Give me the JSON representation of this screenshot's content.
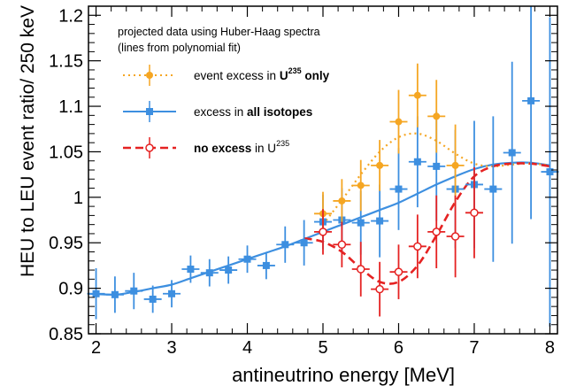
{
  "chart_data": {
    "type": "scatter",
    "xlabel": "antineutrino energy [MeV]",
    "ylabel": "HEU to LEU event ratio/ 250 keV",
    "xlim": [
      1.9,
      8.1
    ],
    "ylim": [
      0.85,
      1.21
    ],
    "xticks": [
      2,
      3,
      4,
      5,
      6,
      7,
      8
    ],
    "yticks": [
      0.85,
      0.9,
      0.95,
      1,
      1.05,
      1.1,
      1.15,
      1.2
    ],
    "xtick_labels": [
      "2",
      "3",
      "4",
      "5",
      "6",
      "7",
      "8"
    ],
    "ytick_labels": [
      "0.85",
      "0.9",
      "0.95",
      "1",
      "1.05",
      "1.1",
      "1.15",
      "1.2"
    ],
    "legend": {
      "position": "top-left",
      "header_line1": "projected data using Huber-Haag spectra",
      "header_line2": "(lines from polynomial fit)",
      "items": [
        {
          "pre": "event excess in ",
          "bold": "U",
          "bold_sup": "235",
          "bold2": " only",
          "post": "",
          "post_sup": "",
          "color": "#f5a623",
          "dash": "2,4",
          "marker": "filled-circle"
        },
        {
          "pre": "excess in ",
          "bold": "all isotopes",
          "bold_sup": "",
          "bold2": "",
          "post": "",
          "post_sup": "",
          "color": "#3d8fe0",
          "dash": "",
          "marker": "filled-square"
        },
        {
          "pre": "",
          "bold": "no excess",
          "bold_sup": "",
          "bold2": "",
          "post": " in U",
          "post_sup": "235",
          "color": "#e52222",
          "dash": "9,5",
          "marker": "open-circle"
        }
      ]
    },
    "series": [
      {
        "key": "u235-only",
        "color": "#f5a623",
        "marker": "filled-circle",
        "points": [
          {
            "x": 5.0,
            "y": 0.982,
            "e": 0.024
          },
          {
            "x": 5.25,
            "y": 0.996,
            "e": 0.024
          },
          {
            "x": 5.5,
            "y": 1.013,
            "e": 0.028
          },
          {
            "x": 5.75,
            "y": 1.035,
            "e": 0.028
          },
          {
            "x": 6.0,
            "y": 1.083,
            "e": 0.035
          },
          {
            "x": 6.25,
            "y": 1.112,
            "e": 0.035
          },
          {
            "x": 6.5,
            "y": 1.089,
            "e": 0.04
          },
          {
            "x": 6.75,
            "y": 1.035,
            "e": 0.045
          }
        ],
        "curve": [
          [
            5.0,
            0.97
          ],
          [
            5.25,
            0.997
          ],
          [
            5.5,
            1.025
          ],
          [
            5.75,
            1.05
          ],
          [
            6.0,
            1.066
          ],
          [
            6.25,
            1.07
          ],
          [
            6.5,
            1.062
          ],
          [
            6.75,
            1.048
          ],
          [
            7.0,
            1.037
          ],
          [
            7.25,
            1.034
          ],
          [
            7.5,
            1.036
          ],
          [
            7.75,
            1.037
          ],
          [
            8.0,
            1.035
          ]
        ]
      },
      {
        "key": "all-isotopes",
        "color": "#3d8fe0",
        "marker": "filled-square",
        "points": [
          {
            "x": 2.0,
            "y": 0.894,
            "e": 0.028
          },
          {
            "x": 2.25,
            "y": 0.893,
            "e": 0.02
          },
          {
            "x": 2.5,
            "y": 0.897,
            "e": 0.02
          },
          {
            "x": 2.75,
            "y": 0.888,
            "e": 0.015
          },
          {
            "x": 3.0,
            "y": 0.894,
            "e": 0.015
          },
          {
            "x": 3.25,
            "y": 0.921,
            "e": 0.015
          },
          {
            "x": 3.5,
            "y": 0.917,
            "e": 0.015
          },
          {
            "x": 3.75,
            "y": 0.92,
            "e": 0.015
          },
          {
            "x": 4.0,
            "y": 0.932,
            "e": 0.015
          },
          {
            "x": 4.25,
            "y": 0.925,
            "e": 0.015
          },
          {
            "x": 4.5,
            "y": 0.948,
            "e": 0.02
          },
          {
            "x": 4.75,
            "y": 0.95,
            "e": 0.025
          },
          {
            "x": 5.0,
            "y": 0.973,
            "e": 0.03
          },
          {
            "x": 5.25,
            "y": 0.975,
            "e": 0.035
          },
          {
            "x": 5.5,
            "y": 0.972,
            "e": 0.035
          },
          {
            "x": 5.75,
            "y": 0.974,
            "e": 0.04
          },
          {
            "x": 6.0,
            "y": 1.009,
            "e": 0.045
          },
          {
            "x": 6.25,
            "y": 1.039,
            "e": 0.05
          },
          {
            "x": 6.5,
            "y": 1.034,
            "e": 0.06
          },
          {
            "x": 6.75,
            "y": 1.009,
            "e": 0.065
          },
          {
            "x": 7.0,
            "y": 1.014,
            "e": 0.07
          },
          {
            "x": 7.25,
            "y": 1.009,
            "e": 0.08
          },
          {
            "x": 7.5,
            "y": 1.049,
            "e": 0.1
          },
          {
            "x": 7.75,
            "y": 1.106,
            "e": 0.13
          },
          {
            "x": 8.0,
            "y": 1.028,
            "e": 0.17
          }
        ],
        "curve": [
          [
            1.9,
            0.894
          ],
          [
            2.25,
            0.893
          ],
          [
            2.5,
            0.896
          ],
          [
            2.75,
            0.9
          ],
          [
            3.0,
            0.904
          ],
          [
            3.25,
            0.911
          ],
          [
            3.5,
            0.918
          ],
          [
            3.75,
            0.925
          ],
          [
            4.0,
            0.932
          ],
          [
            4.25,
            0.939
          ],
          [
            4.5,
            0.946
          ],
          [
            4.75,
            0.954
          ],
          [
            5.0,
            0.962
          ],
          [
            5.25,
            0.97
          ],
          [
            5.5,
            0.978
          ],
          [
            5.75,
            0.986
          ],
          [
            6.0,
            0.994
          ],
          [
            6.25,
            1.004
          ],
          [
            6.5,
            1.014
          ],
          [
            6.75,
            1.023
          ],
          [
            7.0,
            1.031
          ],
          [
            7.25,
            1.036
          ],
          [
            7.5,
            1.038
          ],
          [
            7.75,
            1.038
          ],
          [
            8.0,
            1.035
          ]
        ]
      },
      {
        "key": "no-excess",
        "color": "#e52222",
        "marker": "open-circle",
        "points": [
          {
            "x": 5.0,
            "y": 0.962,
            "e": 0.025
          },
          {
            "x": 5.25,
            "y": 0.948,
            "e": 0.025
          },
          {
            "x": 5.5,
            "y": 0.921,
            "e": 0.03
          },
          {
            "x": 5.75,
            "y": 0.899,
            "e": 0.03
          },
          {
            "x": 6.0,
            "y": 0.918,
            "e": 0.03
          },
          {
            "x": 6.25,
            "y": 0.946,
            "e": 0.035
          },
          {
            "x": 6.5,
            "y": 0.962,
            "e": 0.04
          },
          {
            "x": 6.75,
            "y": 0.957,
            "e": 0.045
          },
          {
            "x": 7.0,
            "y": 0.983,
            "e": 0.05
          }
        ],
        "curve": [
          [
            4.75,
            0.955
          ],
          [
            5.0,
            0.951
          ],
          [
            5.25,
            0.94
          ],
          [
            5.5,
            0.922
          ],
          [
            5.75,
            0.907
          ],
          [
            6.0,
            0.907
          ],
          [
            6.25,
            0.925
          ],
          [
            6.5,
            0.958
          ],
          [
            6.75,
            0.995
          ],
          [
            7.0,
            1.023
          ],
          [
            7.25,
            1.034
          ],
          [
            7.5,
            1.037
          ],
          [
            7.75,
            1.037
          ],
          [
            8.0,
            1.034
          ]
        ]
      }
    ]
  }
}
